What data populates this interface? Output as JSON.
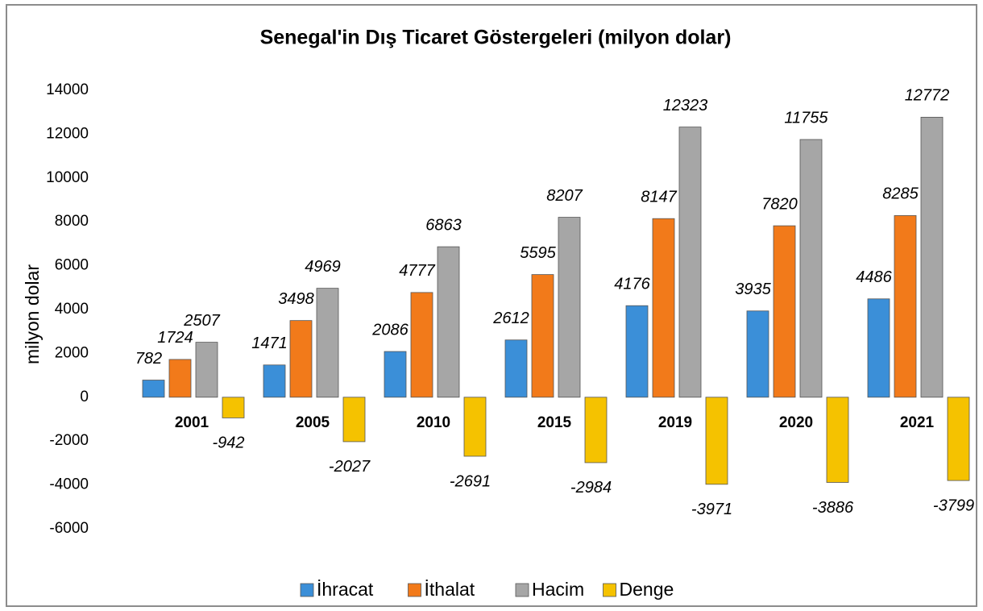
{
  "chart_data": {
    "type": "bar",
    "title": "Senegal'in Dış Ticaret Göstergeleri  (milyon dolar)",
    "ylabel": "milyon dolar",
    "categories": [
      "2001",
      "2005",
      "2010",
      "2015",
      "2019",
      "2020",
      "2021"
    ],
    "series": [
      {
        "name": "İhracat",
        "color": "#3b8fd8",
        "values": [
          782,
          1471,
          2086,
          2612,
          4176,
          3935,
          4486
        ]
      },
      {
        "name": "İthalat",
        "color": "#f27a1a",
        "values": [
          1724,
          3498,
          4777,
          5595,
          8147,
          7820,
          8285
        ]
      },
      {
        "name": "Hacim",
        "color": "#a6a6a6",
        "values": [
          2507,
          4969,
          6863,
          8207,
          12323,
          11755,
          12772
        ]
      },
      {
        "name": "Denge",
        "color": "#f5c200",
        "values": [
          -942,
          -2027,
          -2691,
          -2984,
          -3971,
          -3886,
          -3799
        ]
      }
    ],
    "ylim": [
      -6000,
      14000
    ],
    "yticks": [
      -6000,
      -4000,
      -2000,
      0,
      2000,
      4000,
      6000,
      8000,
      10000,
      12000,
      14000
    ],
    "legend": "bottom"
  }
}
